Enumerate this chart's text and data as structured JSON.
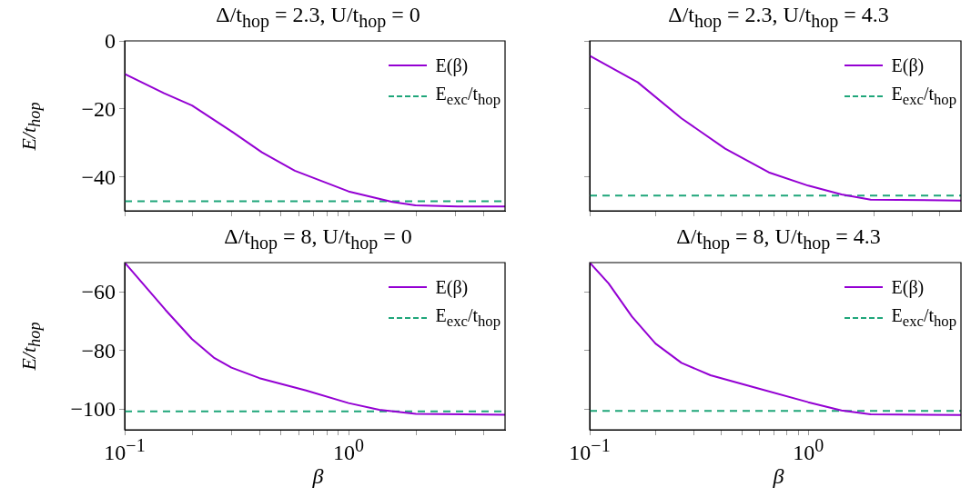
{
  "chart_data": [
    {
      "type": "line",
      "title": "Δ/t$_{hop}$ = 2.3, U/t$_{hop}$ = 0",
      "ylabel": "E/t$_{hop}$",
      "log": "x",
      "xlim": [
        0.1,
        5
      ],
      "ylim": [
        -50,
        0
      ],
      "xticks": [
        {
          "value": 0.1,
          "label": null
        },
        {
          "value": 0.2,
          "label": null
        },
        {
          "value": 0.3,
          "label": null
        },
        {
          "value": 0.4,
          "label": null
        },
        {
          "value": 0.5,
          "label": null
        },
        {
          "value": 0.6,
          "label": null
        },
        {
          "value": 0.7,
          "label": null
        },
        {
          "value": 0.8,
          "label": null
        },
        {
          "value": 0.9,
          "label": null
        },
        {
          "value": 1,
          "label": null
        },
        {
          "value": 2,
          "label": null
        },
        {
          "value": 3,
          "label": null
        },
        {
          "value": 4,
          "label": null
        }
      ],
      "yticks": [
        -40,
        -20,
        0
      ],
      "tick_labels": "y",
      "legend": "top right",
      "series": [
        {
          "name": "E(β)",
          "color": "#9400d3",
          "line_style": "solid",
          "x": [
            0.1,
            0.15,
            0.2,
            0.295,
            0.41,
            0.575,
            1,
            1.57,
            1.99,
            3.06,
            5
          ],
          "values": [
            -9.7,
            -15.4,
            -19,
            -26.3,
            -32.8,
            -38.2,
            -44.3,
            -47.4,
            -48.4,
            -48.7,
            -48.7
          ]
        },
        {
          "name": "E$_{exc}$/t$_{hop}$",
          "color": "#1fa67a",
          "line_style": "dashed",
          "x": [
            0.1,
            5
          ],
          "values": [
            -47.2,
            -47.2
          ]
        }
      ]
    },
    {
      "type": "line",
      "title": "Δ/t$_{hop}$ = 2.3, U/t$_{hop}$ = 4.3",
      "log": "x",
      "xlim": [
        0.1,
        5
      ],
      "ylim": [
        -50,
        0
      ],
      "xticks": [
        {
          "value": 0.1,
          "label": null
        },
        {
          "value": 0.2,
          "label": null
        },
        {
          "value": 0.3,
          "label": null
        },
        {
          "value": 0.4,
          "label": null
        },
        {
          "value": 0.5,
          "label": null
        },
        {
          "value": 0.6,
          "label": null
        },
        {
          "value": 0.7,
          "label": null
        },
        {
          "value": 0.8,
          "label": null
        },
        {
          "value": 0.9,
          "label": null
        },
        {
          "value": 1,
          "label": null
        },
        {
          "value": 2,
          "label": null
        },
        {
          "value": 3,
          "label": null
        },
        {
          "value": 4,
          "label": null
        }
      ],
      "yticks": [
        -40,
        -20,
        0
      ],
      "tick_labels": false,
      "legend": "top right",
      "series": [
        {
          "name": "E(β)",
          "color": "#9400d3",
          "line_style": "solid",
          "x": [
            0.1,
            0.166,
            0.263,
            0.417,
            0.66,
            1,
            1.42,
            1.93,
            5
          ],
          "values": [
            -4.4,
            -12.2,
            -22.8,
            -31.7,
            -38.7,
            -42.6,
            -45.2,
            -46.7,
            -47
          ]
        },
        {
          "name": "E$_{exc}$/t$_{hop}$",
          "color": "#1fa67a",
          "line_style": "dashed",
          "x": [
            0.1,
            5
          ],
          "values": [
            -45.5,
            -45.5
          ]
        }
      ]
    },
    {
      "type": "line",
      "title": "Δ/t$_{hop}$ = 8, U/t$_{hop}$ = 0",
      "xlabel": "β",
      "ylabel": "E/t$_{hop}$",
      "log": "x",
      "xlim": [
        0.1,
        5
      ],
      "ylim": [
        -107,
        -50
      ],
      "xticks": [
        {
          "value": 0.1,
          "label": "10$^{−1}$"
        },
        {
          "value": 0.2,
          "label": null
        },
        {
          "value": 0.3,
          "label": null
        },
        {
          "value": 0.4,
          "label": null
        },
        {
          "value": 0.5,
          "label": null
        },
        {
          "value": 0.6,
          "label": null
        },
        {
          "value": 0.7,
          "label": null
        },
        {
          "value": 0.8,
          "label": null
        },
        {
          "value": 0.9,
          "label": null
        },
        {
          "value": 1,
          "label": "10$^{0}$"
        },
        {
          "value": 2,
          "label": null
        },
        {
          "value": 3,
          "label": null
        },
        {
          "value": 4,
          "label": null
        }
      ],
      "yticks": [
        -100,
        -80,
        -60
      ],
      "legend": "top right",
      "series": [
        {
          "name": "E(β)",
          "color": "#9400d3",
          "line_style": "solid",
          "x": [
            0.1,
            0.152,
            0.2,
            0.25,
            0.3,
            0.4,
            0.646,
            1,
            1.37,
            2,
            5
          ],
          "values": [
            -50,
            -66.1,
            -76.1,
            -82.4,
            -85.8,
            -89.4,
            -93.6,
            -97.9,
            -100.2,
            -101.6,
            -101.9
          ]
        },
        {
          "name": "E$_{exc}$/t$_{hop}$",
          "color": "#1fa67a",
          "line_style": "dashed",
          "x": [
            0.1,
            5
          ],
          "values": [
            -100.7,
            -100.7
          ]
        }
      ]
    },
    {
      "type": "line",
      "title": "Δ/t$_{hop}$ = 8, U/t$_{hop}$ = 4.3",
      "xlabel": "β",
      "log": "x",
      "xlim": [
        0.1,
        5
      ],
      "ylim": [
        -107,
        -50
      ],
      "xticks": [
        {
          "value": 0.1,
          "label": "10$^{−1}$"
        },
        {
          "value": 0.2,
          "label": null
        },
        {
          "value": 0.3,
          "label": null
        },
        {
          "value": 0.4,
          "label": null
        },
        {
          "value": 0.5,
          "label": null
        },
        {
          "value": 0.6,
          "label": null
        },
        {
          "value": 0.7,
          "label": null
        },
        {
          "value": 0.8,
          "label": null
        },
        {
          "value": 0.9,
          "label": null
        },
        {
          "value": 1,
          "label": "10$^{0}$"
        },
        {
          "value": 2,
          "label": null
        },
        {
          "value": 3,
          "label": null
        },
        {
          "value": 4,
          "label": null
        }
      ],
      "yticks": [
        -100,
        -80,
        -60
      ],
      "tick_labels": "x",
      "legend": "top right",
      "series": [
        {
          "name": "E(β)",
          "color": "#9400d3",
          "line_style": "solid",
          "x": [
            0.1,
            0.122,
            0.156,
            0.2,
            0.263,
            0.357,
            0.565,
            1,
            1.42,
            1.93,
            5
          ],
          "values": [
            -50,
            -57.1,
            -68.4,
            -77.6,
            -84.2,
            -88.4,
            -92.5,
            -97.6,
            -100.4,
            -101.7,
            -102
          ]
        },
        {
          "name": "E$_{exc}$/t$_{hop}$",
          "color": "#1fa67a",
          "line_style": "dashed",
          "x": [
            0.1,
            5
          ],
          "values": [
            -100.6,
            -100.6
          ]
        }
      ]
    }
  ]
}
